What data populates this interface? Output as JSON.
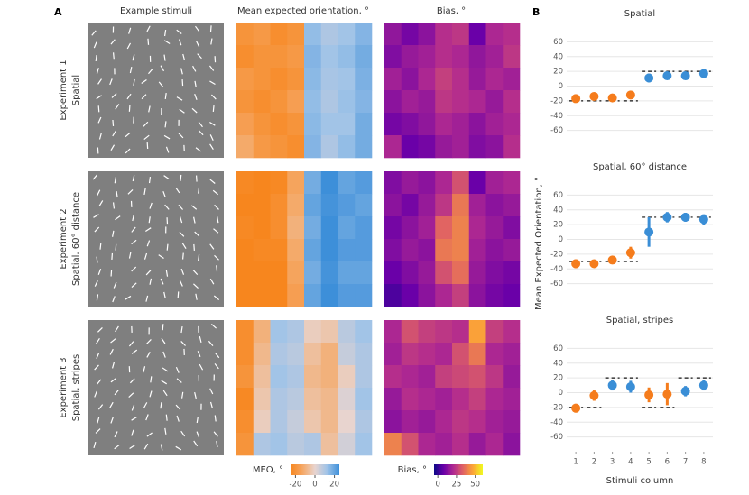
{
  "panel_a": {
    "label": "A",
    "stimuli_title": "Example stimuli",
    "rows": [
      {
        "experiment": "Experiment 1",
        "condition": "Spatial"
      },
      {
        "experiment": "Experiment 2",
        "condition": "Spatial, 60° distance"
      },
      {
        "experiment": "Experiment 3",
        "condition": "Spatial, stripes"
      }
    ]
  },
  "panel_b": {
    "label": "B",
    "xlabel": "Stimuli column",
    "ylabel": "Mean Expected Orientation, °"
  },
  "chart_data": [
    {
      "type": "heatmap",
      "title": "Mean expected orientation, °",
      "colorbar_label": "MEO, °",
      "clim": [
        -25,
        25
      ],
      "cticks": [
        -20,
        0,
        20
      ],
      "colors": [
        "#f7861e",
        "#f5a866",
        "#e8d4cf",
        "#9fc3e8",
        "#3d8fd9"
      ],
      "panels": [
        [
          [
            -20,
            -18,
            -22,
            -20,
            14,
            10,
            12,
            16
          ],
          [
            -22,
            -20,
            -20,
            -18,
            16,
            12,
            14,
            18
          ],
          [
            -18,
            -20,
            -22,
            -20,
            15,
            11,
            12,
            17
          ],
          [
            -20,
            -22,
            -20,
            -16,
            14,
            10,
            13,
            16
          ],
          [
            -16,
            -20,
            -22,
            -20,
            15,
            12,
            12,
            18
          ],
          [
            -12,
            -18,
            -20,
            -22,
            16,
            10,
            14,
            18
          ]
        ],
        [
          [
            -24,
            -26,
            -24,
            -14,
            18,
            26,
            20,
            22
          ],
          [
            -26,
            -25,
            -22,
            -12,
            20,
            24,
            22,
            20
          ],
          [
            -24,
            -26,
            -22,
            -10,
            18,
            25,
            20,
            22
          ],
          [
            -25,
            -24,
            -24,
            -12,
            20,
            26,
            22,
            22
          ],
          [
            -26,
            -26,
            -25,
            -14,
            18,
            24,
            20,
            20
          ],
          [
            -28,
            -26,
            -26,
            -16,
            20,
            26,
            22,
            22
          ]
        ],
        [
          [
            -22,
            -10,
            12,
            10,
            -2,
            -4,
            8,
            12
          ],
          [
            -22,
            -8,
            10,
            8,
            -6,
            -10,
            6,
            10
          ],
          [
            -20,
            -6,
            12,
            10,
            -8,
            -10,
            -2,
            10
          ],
          [
            -24,
            -4,
            10,
            8,
            -6,
            -8,
            2,
            12
          ],
          [
            -22,
            -2,
            10,
            6,
            -4,
            -8,
            0,
            10
          ],
          [
            -20,
            10,
            12,
            8,
            10,
            -6,
            4,
            12
          ]
        ]
      ]
    },
    {
      "type": "heatmap",
      "title": "Bias, °",
      "colorbar_label": "Bias, °",
      "clim": [
        -5,
        60
      ],
      "cticks": [
        0,
        25,
        50
      ],
      "colors": [
        "#0d0887",
        "#6a00a8",
        "#b12a90",
        "#e16462",
        "#fca636",
        "#f0f921"
      ],
      "panels": [
        [
          [
            15,
            10,
            14,
            22,
            24,
            8,
            20,
            22
          ],
          [
            12,
            16,
            18,
            22,
            20,
            15,
            18,
            24
          ],
          [
            18,
            14,
            20,
            26,
            22,
            16,
            20,
            18
          ],
          [
            14,
            18,
            16,
            24,
            22,
            20,
            16,
            22
          ],
          [
            10,
            12,
            15,
            20,
            18,
            14,
            18,
            20
          ],
          [
            20,
            8,
            10,
            16,
            18,
            12,
            14,
            22
          ]
        ],
        [
          [
            12,
            16,
            14,
            20,
            30,
            8,
            18,
            20
          ],
          [
            14,
            10,
            16,
            24,
            38,
            18,
            14,
            16
          ],
          [
            10,
            14,
            18,
            34,
            40,
            20,
            16,
            12
          ],
          [
            12,
            16,
            14,
            38,
            40,
            18,
            14,
            16
          ],
          [
            8,
            12,
            16,
            30,
            36,
            16,
            12,
            10
          ],
          [
            4,
            8,
            14,
            20,
            26,
            14,
            10,
            8
          ]
        ],
        [
          [
            20,
            30,
            26,
            24,
            22,
            46,
            26,
            22
          ],
          [
            18,
            24,
            22,
            20,
            30,
            38,
            20,
            18
          ],
          [
            22,
            20,
            18,
            26,
            28,
            30,
            24,
            16
          ],
          [
            16,
            22,
            20,
            18,
            22,
            26,
            20,
            18
          ],
          [
            14,
            18,
            16,
            20,
            24,
            22,
            18,
            16
          ],
          [
            40,
            30,
            20,
            18,
            22,
            16,
            20,
            14
          ]
        ]
      ]
    },
    {
      "type": "scatter",
      "title": "Spatial",
      "x": [
        1,
        2,
        3,
        4,
        5,
        6,
        7,
        8
      ],
      "values": [
        -17,
        -14,
        -16,
        -12,
        11,
        14,
        14,
        17
      ],
      "errors": [
        5,
        5,
        5,
        5,
        6,
        5,
        5,
        5
      ],
      "expected": [
        -20,
        -20,
        -20,
        -20,
        20,
        20,
        20,
        20
      ],
      "colors": [
        "#f57c1c",
        "#f57c1c",
        "#f57c1c",
        "#f57c1c",
        "#3a8ed6",
        "#3a8ed6",
        "#3a8ed6",
        "#3a8ed6"
      ],
      "xlim": [
        0.5,
        8.5
      ],
      "ylim": [
        -80,
        80
      ],
      "yticks": [
        60,
        40,
        20,
        0,
        -20,
        -40,
        -60
      ],
      "grid": true
    },
    {
      "type": "scatter",
      "title": "Spatial, 60° distance",
      "x": [
        1,
        2,
        3,
        4,
        5,
        6,
        7,
        8
      ],
      "values": [
        -33,
        -33,
        -28,
        -18,
        10,
        30,
        30,
        27
      ],
      "errors": [
        6,
        5,
        5,
        8,
        20,
        7,
        6,
        7
      ],
      "expected": [
        -30,
        -30,
        -30,
        -30,
        30,
        30,
        30,
        30
      ],
      "colors": [
        "#f57c1c",
        "#f57c1c",
        "#f57c1c",
        "#f57c1c",
        "#3a8ed6",
        "#3a8ed6",
        "#3a8ed6",
        "#3a8ed6"
      ],
      "xlim": [
        0.5,
        8.5
      ],
      "ylim": [
        -80,
        80
      ],
      "yticks": [
        60,
        40,
        20,
        0,
        -20,
        -40,
        -60
      ],
      "grid": true
    },
    {
      "type": "scatter",
      "title": "Spatial, stripes",
      "x": [
        1,
        2,
        3,
        4,
        5,
        6,
        7,
        8
      ],
      "values": [
        -21,
        -4,
        10,
        8,
        -3,
        -2,
        2,
        10
      ],
      "errors": [
        6,
        7,
        7,
        8,
        10,
        15,
        7,
        7
      ],
      "expected": [
        -20,
        -20,
        20,
        20,
        -20,
        -20,
        20,
        20
      ],
      "colors": [
        "#f57c1c",
        "#f57c1c",
        "#3a8ed6",
        "#3a8ed6",
        "#f57c1c",
        "#f57c1c",
        "#3a8ed6",
        "#3a8ed6"
      ],
      "xlim": [
        0.5,
        8.5
      ],
      "ylim": [
        -80,
        80
      ],
      "yticks": [
        60,
        40,
        20,
        0,
        -20,
        -40,
        -60
      ],
      "xticks": [
        1,
        2,
        3,
        4,
        5,
        6,
        7,
        8
      ],
      "grid": true
    }
  ]
}
